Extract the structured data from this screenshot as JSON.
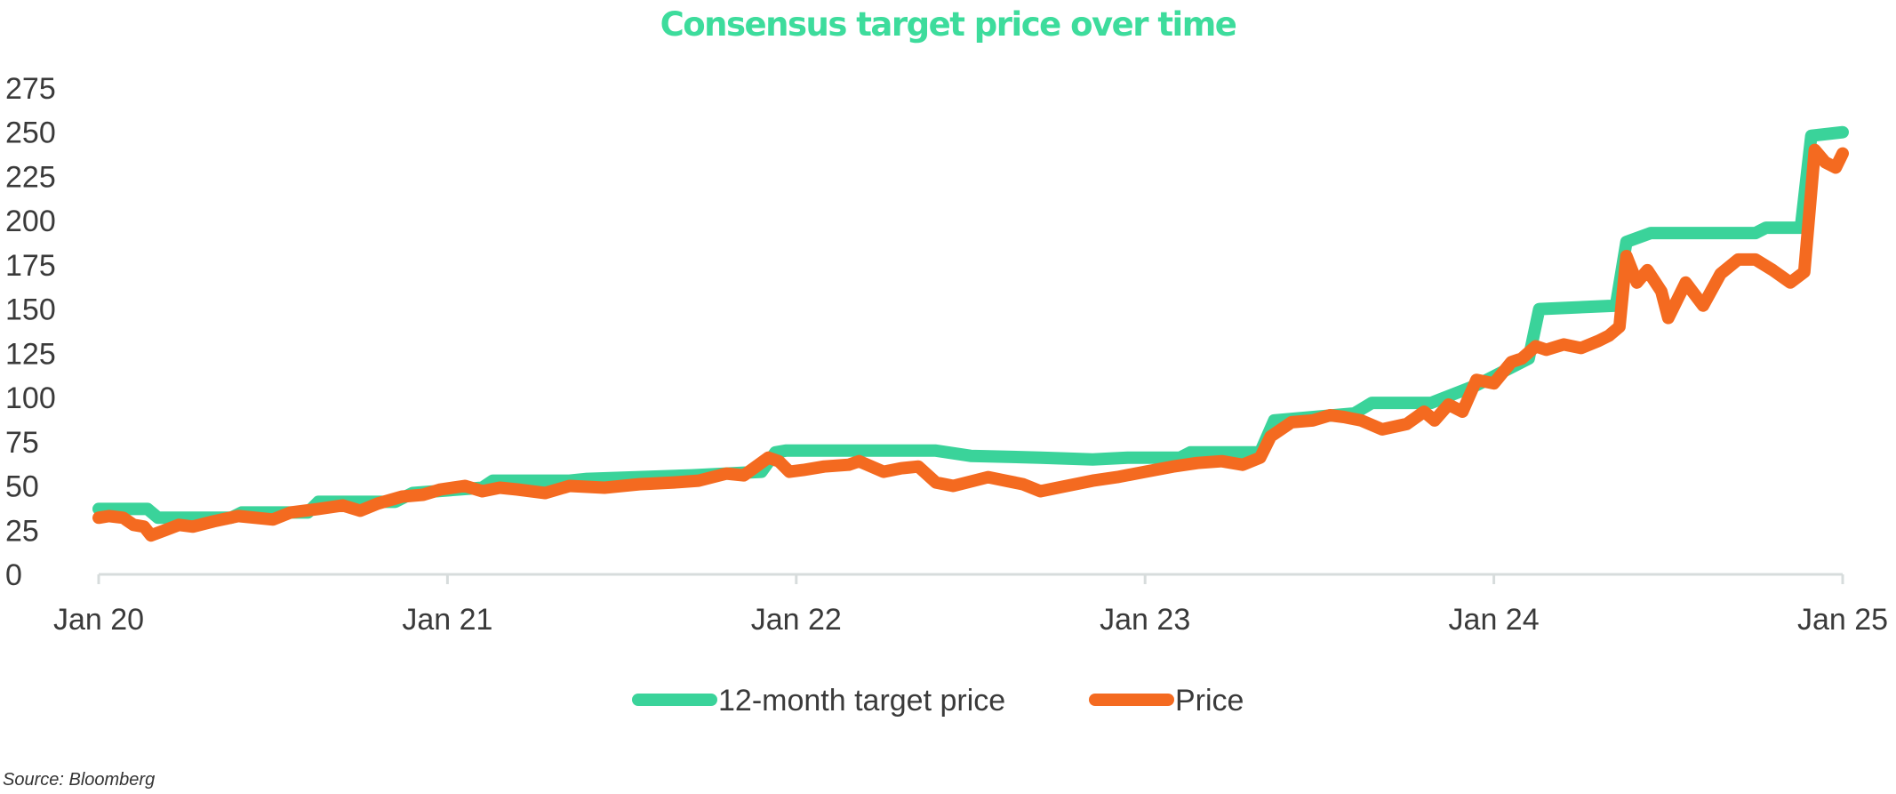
{
  "chart_data": {
    "type": "line",
    "title": "Consensus target price over time",
    "xlabel": "",
    "ylabel": "",
    "x_tick_labels": [
      "Jan 20",
      "Jan 21",
      "Jan 22",
      "Jan 23",
      "Jan 24",
      "Jan 25"
    ],
    "y_ticks": [
      0,
      25,
      50,
      75,
      100,
      125,
      150,
      175,
      200,
      225,
      250,
      275
    ],
    "xlim": [
      2020.0,
      2025.0
    ],
    "ylim": [
      0,
      275
    ],
    "grid": false,
    "legend_position": "bottom",
    "series": [
      {
        "name": "12-month target price",
        "color": "#3ad39a",
        "points": [
          [
            2020.0,
            37
          ],
          [
            2020.14,
            37
          ],
          [
            2020.17,
            32
          ],
          [
            2020.38,
            32
          ],
          [
            2020.41,
            35
          ],
          [
            2020.6,
            35
          ],
          [
            2020.63,
            41
          ],
          [
            2020.85,
            41
          ],
          [
            2020.9,
            46
          ],
          [
            2021.1,
            49
          ],
          [
            2021.13,
            53
          ],
          [
            2021.35,
            53
          ],
          [
            2021.4,
            54
          ],
          [
            2021.7,
            56
          ],
          [
            2021.9,
            58
          ],
          [
            2021.94,
            69
          ],
          [
            2021.97,
            70
          ],
          [
            2022.35,
            70
          ],
          [
            2022.4,
            70
          ],
          [
            2022.5,
            67
          ],
          [
            2022.7,
            66
          ],
          [
            2022.85,
            65
          ],
          [
            2022.95,
            66
          ],
          [
            2023.1,
            66
          ],
          [
            2023.13,
            69
          ],
          [
            2023.33,
            69
          ],
          [
            2023.37,
            87
          ],
          [
            2023.6,
            91
          ],
          [
            2023.65,
            97
          ],
          [
            2023.82,
            97
          ],
          [
            2023.95,
            107
          ],
          [
            2024.05,
            117
          ],
          [
            2024.1,
            122
          ],
          [
            2024.13,
            150
          ],
          [
            2024.35,
            152
          ],
          [
            2024.38,
            188
          ],
          [
            2024.45,
            193
          ],
          [
            2024.75,
            193
          ],
          [
            2024.78,
            196
          ],
          [
            2024.88,
            196
          ],
          [
            2024.91,
            248
          ],
          [
            2025.0,
            250
          ]
        ]
      },
      {
        "name": "Price",
        "color": "#f46a20",
        "points": [
          [
            2020.0,
            32
          ],
          [
            2020.03,
            33
          ],
          [
            2020.07,
            32
          ],
          [
            2020.1,
            28
          ],
          [
            2020.13,
            27
          ],
          [
            2020.15,
            22
          ],
          [
            2020.19,
            25
          ],
          [
            2020.23,
            28
          ],
          [
            2020.27,
            27
          ],
          [
            2020.33,
            30
          ],
          [
            2020.4,
            33
          ],
          [
            2020.5,
            31
          ],
          [
            2020.55,
            35
          ],
          [
            2020.63,
            37
          ],
          [
            2020.7,
            39
          ],
          [
            2020.75,
            36
          ],
          [
            2020.8,
            40
          ],
          [
            2020.87,
            44
          ],
          [
            2020.93,
            45
          ],
          [
            2020.98,
            48
          ],
          [
            2021.05,
            50
          ],
          [
            2021.1,
            47
          ],
          [
            2021.15,
            49
          ],
          [
            2021.2,
            48
          ],
          [
            2021.28,
            46
          ],
          [
            2021.35,
            50
          ],
          [
            2021.45,
            49
          ],
          [
            2021.55,
            51
          ],
          [
            2021.65,
            52
          ],
          [
            2021.72,
            53
          ],
          [
            2021.8,
            57
          ],
          [
            2021.85,
            56
          ],
          [
            2021.92,
            66
          ],
          [
            2021.95,
            64
          ],
          [
            2021.98,
            58
          ],
          [
            2022.02,
            59
          ],
          [
            2022.08,
            61
          ],
          [
            2022.15,
            62
          ],
          [
            2022.18,
            64
          ],
          [
            2022.25,
            58
          ],
          [
            2022.3,
            60
          ],
          [
            2022.35,
            61
          ],
          [
            2022.4,
            52
          ],
          [
            2022.45,
            50
          ],
          [
            2022.55,
            55
          ],
          [
            2022.6,
            53
          ],
          [
            2022.65,
            51
          ],
          [
            2022.7,
            47
          ],
          [
            2022.75,
            49
          ],
          [
            2022.85,
            53
          ],
          [
            2022.92,
            55
          ],
          [
            2023.0,
            58
          ],
          [
            2023.08,
            61
          ],
          [
            2023.15,
            63
          ],
          [
            2023.22,
            64
          ],
          [
            2023.28,
            62
          ],
          [
            2023.33,
            66
          ],
          [
            2023.36,
            78
          ],
          [
            2023.42,
            86
          ],
          [
            2023.48,
            87
          ],
          [
            2023.53,
            90
          ],
          [
            2023.57,
            89
          ],
          [
            2023.62,
            87
          ],
          [
            2023.68,
            82
          ],
          [
            2023.75,
            85
          ],
          [
            2023.8,
            92
          ],
          [
            2023.83,
            87
          ],
          [
            2023.87,
            96
          ],
          [
            2023.91,
            92
          ],
          [
            2023.95,
            110
          ],
          [
            2024.0,
            108
          ],
          [
            2024.05,
            120
          ],
          [
            2024.08,
            122
          ],
          [
            2024.12,
            129
          ],
          [
            2024.15,
            127
          ],
          [
            2024.2,
            130
          ],
          [
            2024.25,
            128
          ],
          [
            2024.3,
            132
          ],
          [
            2024.33,
            135
          ],
          [
            2024.36,
            140
          ],
          [
            2024.38,
            180
          ],
          [
            2024.41,
            165
          ],
          [
            2024.44,
            172
          ],
          [
            2024.48,
            160
          ],
          [
            2024.5,
            145
          ],
          [
            2024.55,
            165
          ],
          [
            2024.6,
            152
          ],
          [
            2024.65,
            170
          ],
          [
            2024.7,
            178
          ],
          [
            2024.75,
            178
          ],
          [
            2024.8,
            172
          ],
          [
            2024.85,
            165
          ],
          [
            2024.89,
            171
          ],
          [
            2024.92,
            240
          ],
          [
            2024.95,
            233
          ],
          [
            2024.98,
            230
          ],
          [
            2025.0,
            238
          ]
        ]
      }
    ]
  },
  "source": "Source: Bloomberg"
}
